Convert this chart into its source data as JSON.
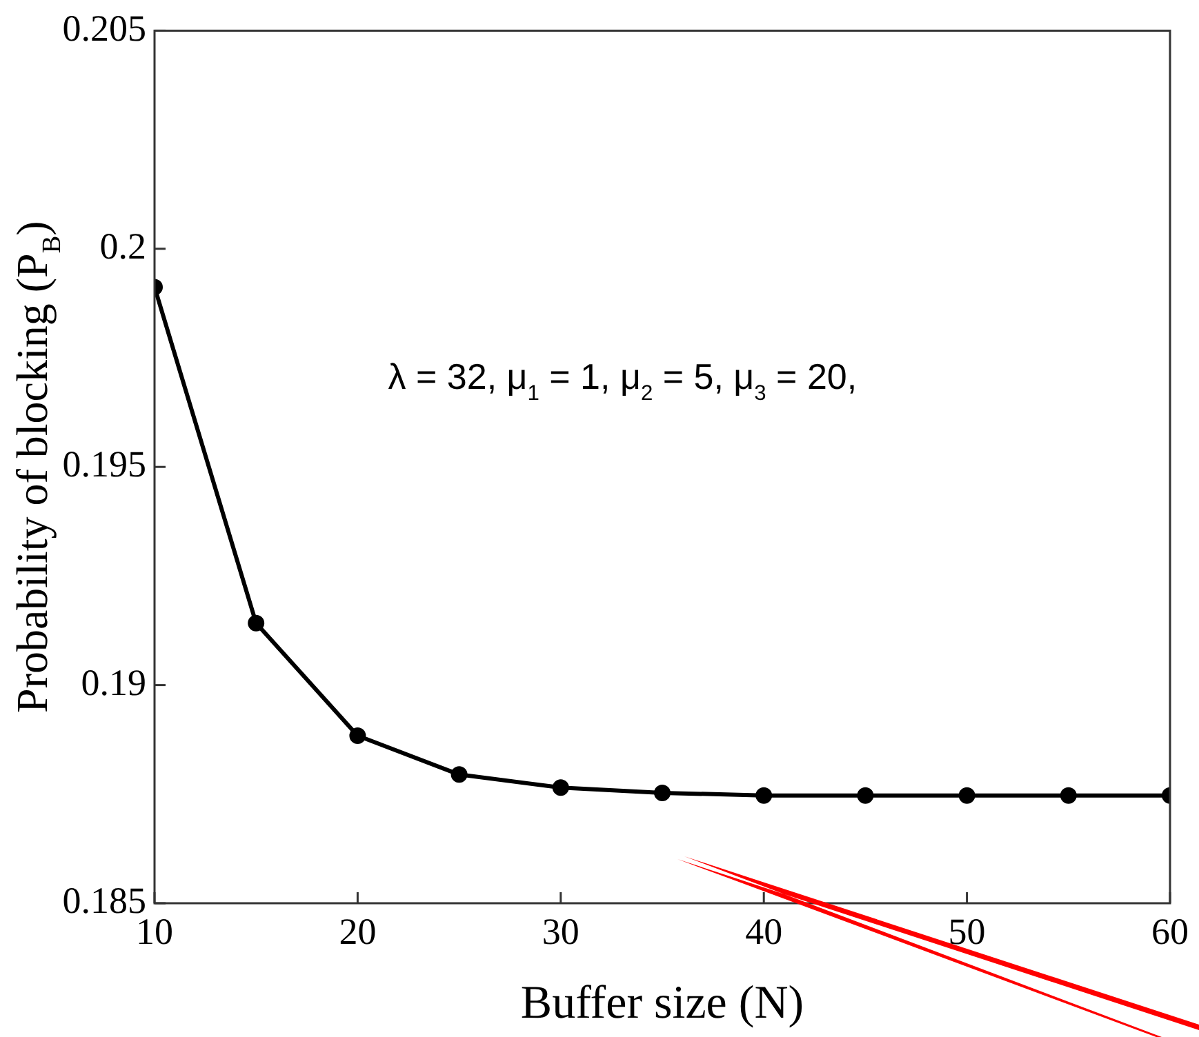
{
  "chart_data": {
    "type": "line",
    "xlabel": "Buffer size (N)",
    "ylabel": "Probability of blocking (P$_{B}$)",
    "x": [
      10,
      15,
      20,
      25,
      30,
      35,
      40,
      45,
      50,
      55,
      60
    ],
    "series": [
      {
        "color": "#000000",
        "values": [
          0.19912,
          0.19142,
          0.18884,
          0.18795,
          0.18765,
          0.18753,
          0.18747,
          0.18747,
          0.18747,
          0.18747,
          0.18747
        ]
      }
    ],
    "xlim": [
      10,
      60
    ],
    "xticks": [
      10,
      20,
      30,
      40,
      50,
      60
    ],
    "ylim": [
      0.185,
      0.205
    ],
    "yticks": [
      0.185,
      0.19,
      0.195,
      0.2,
      0.205
    ],
    "annotations": [
      "λ = 32, μ$_{1}$ = 1, μ$_{2}$ = 5, μ$_{3}$ = 20,"
    ],
    "grid": false,
    "legend": false,
    "marker": "circle",
    "line_style": "solid"
  }
}
